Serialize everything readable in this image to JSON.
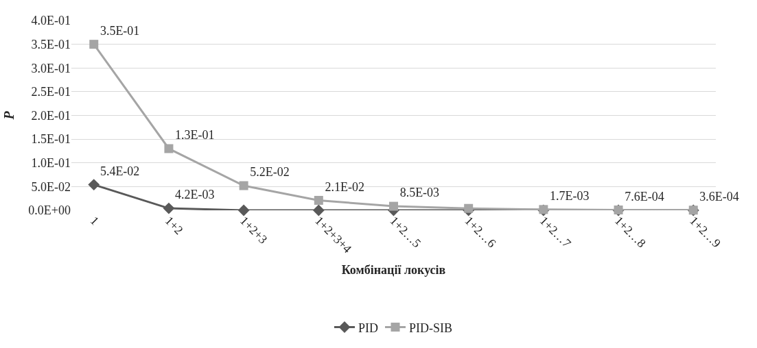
{
  "chart_data": {
    "type": "line",
    "xlabel": "Комбінації локусів",
    "ylabel": "P",
    "categories": [
      "1",
      "1+2",
      "1+2+3",
      "1+2+3+4",
      "1+2…5",
      "1+2…6",
      "1+2…7",
      "1+2…8",
      "1+2…9"
    ],
    "series": [
      {
        "name": "PID",
        "color": "#595959",
        "marker": "diamond",
        "values": [
          0.054,
          0.0042,
          0,
          0,
          0,
          0,
          0,
          0,
          0
        ],
        "value_labels": [
          "5.4E-02",
          "4.2E-03",
          null,
          null,
          null,
          null,
          null,
          null,
          null
        ]
      },
      {
        "name": "PID-SIB",
        "color": "#a5a5a5",
        "marker": "square",
        "values": [
          0.35,
          0.13,
          0.052,
          0.021,
          0.0085,
          0.004,
          0.0017,
          0.00076,
          0.00036
        ],
        "value_labels": [
          "3.5E-01",
          "1.3E-01",
          "5.2E-02",
          "2.1E-02",
          "8.5E-03",
          null,
          "1.7E-03",
          "7.6E-04",
          "3.6E-04"
        ]
      }
    ],
    "ylim": [
      0,
      0.4
    ],
    "yticks": [
      {
        "value": 0,
        "label": "0.0E+00"
      },
      {
        "value": 0.05,
        "label": "5.0E-02"
      },
      {
        "value": 0.1,
        "label": "1.0E-01"
      },
      {
        "value": 0.15,
        "label": "1.5E-01"
      },
      {
        "value": 0.2,
        "label": "2.0E-01"
      },
      {
        "value": 0.25,
        "label": "2.5E-01"
      },
      {
        "value": 0.3,
        "label": "3.0E-01"
      },
      {
        "value": 0.35,
        "label": "3.5E-01"
      },
      {
        "value": 0.4,
        "label": "4.0E-01"
      }
    ],
    "grid": "y",
    "legend": "bottom",
    "line_style": "solid"
  }
}
